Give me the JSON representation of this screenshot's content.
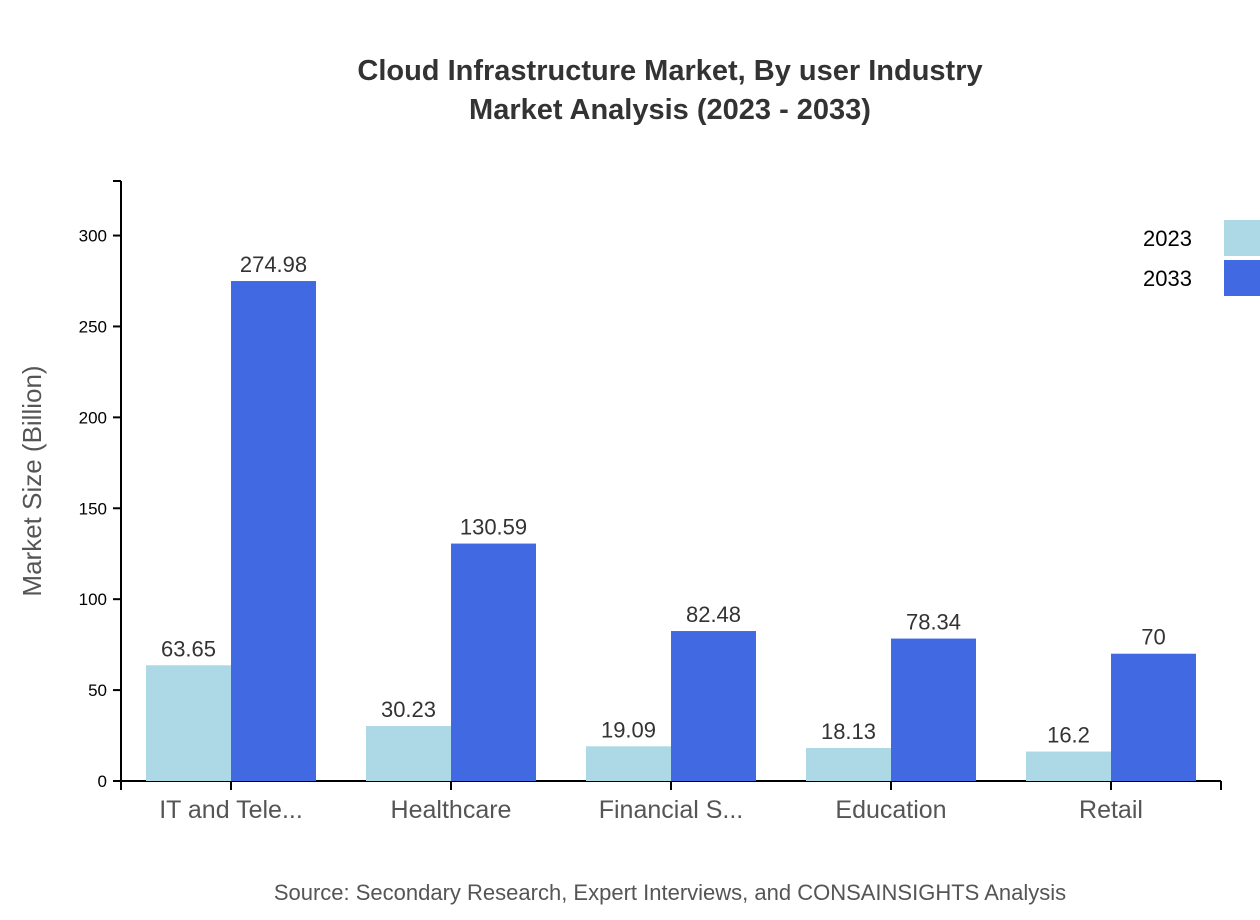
{
  "chart_data": {
    "type": "bar",
    "title": "Cloud Infrastructure Market, By user Industry",
    "subtitle": "Market Analysis (2023 - 2033)",
    "ylabel": "Market Size (Billion)",
    "xlabel": "",
    "ylim": [
      0,
      330
    ],
    "yticks": [
      0,
      50,
      100,
      150,
      200,
      250,
      300
    ],
    "categories": [
      "IT and Tele...",
      "Healthcare",
      "Financial S...",
      "Education",
      "Retail"
    ],
    "series": [
      {
        "name": "2023",
        "color": "#add8e6",
        "values": [
          63.65,
          30.23,
          19.09,
          18.13,
          16.2
        ]
      },
      {
        "name": "2033",
        "color": "#4169e1",
        "values": [
          274.98,
          130.59,
          82.48,
          78.34,
          70
        ]
      }
    ],
    "legend_position": "top-right",
    "grid": false,
    "source": "Source: Secondary Research, Expert Interviews, and CONSAINSIGHTS Analysis"
  }
}
